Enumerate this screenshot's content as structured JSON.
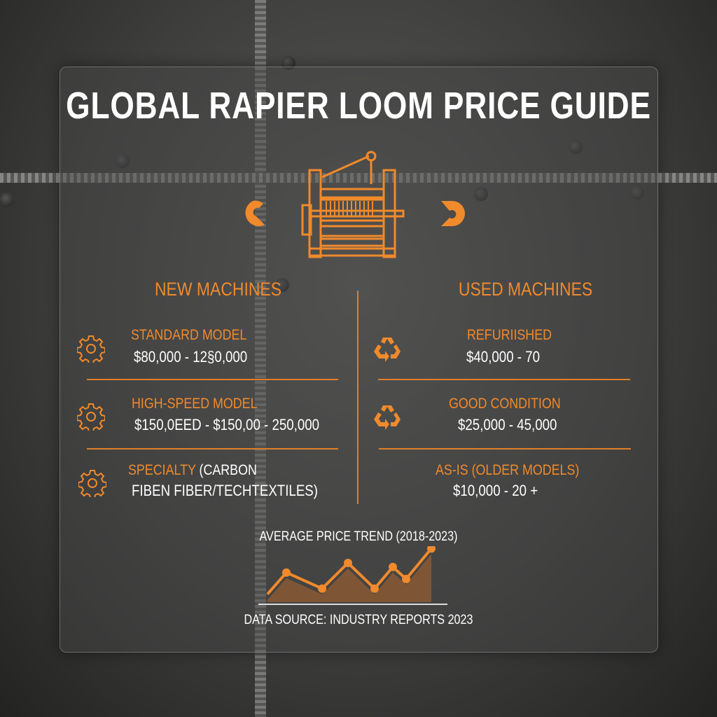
{
  "title": "GLOBAL RAPIER LOOM PRICE GUIDE",
  "accent_color": "#f08a2c",
  "icons": {
    "hero": "loom-machine-icon",
    "left": "arrow-circle-left-icon",
    "right": "arrow-circle-right-icon"
  },
  "new_machines": {
    "heading": "NEW MACHINES",
    "icon": "gear-icon",
    "items": [
      {
        "label": "STANDARD MODEL",
        "price": "$80,000 - 12§0,000"
      },
      {
        "label": "HIGH-SPEED MODEL",
        "price": "$150,0EED - $150,00 - 250,000"
      },
      {
        "label": "SPECIALTY",
        "label_suffix": "(CARBON",
        "price": "FIBEN FIBER/TECHTEXTILES)"
      }
    ]
  },
  "used_machines": {
    "heading": "USED MACHINES",
    "icon": "recycle-icon",
    "items": [
      {
        "label": "REFURIISHED",
        "price": "$40,000 - 70"
      },
      {
        "label": "GOOD CONDITION",
        "price": "$25,000 - 45,000"
      },
      {
        "label": "AS-IS (OLDER MODELS)",
        "price": "$10,000 - 20 +"
      }
    ]
  },
  "chart_data": {
    "type": "area",
    "title": "AVERAGE PRICE TREND (2018-2023)",
    "values": [
      10,
      37,
      17,
      49,
      17,
      44,
      29,
      67
    ],
    "markers": [
      false,
      true,
      true,
      true,
      true,
      true,
      true,
      true
    ],
    "ylim": [
      0,
      70
    ],
    "grid": false,
    "color": "#f08a2c"
  },
  "footer": "DATA SOURCE: INDUSTRY REPORTS 2023"
}
